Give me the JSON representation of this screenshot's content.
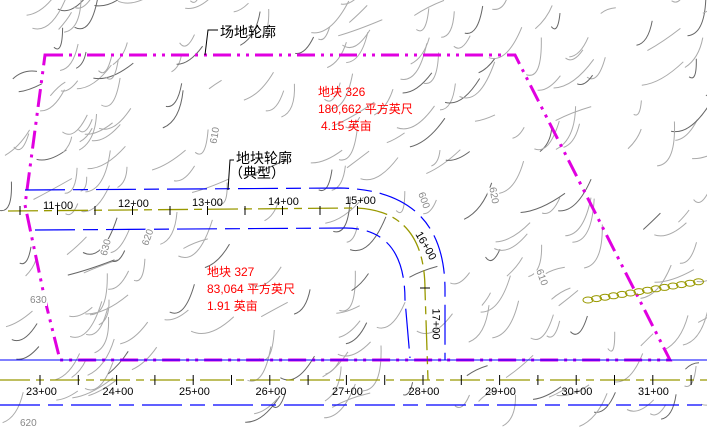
{
  "labels": {
    "site_outline": "场地轮廓",
    "parcel_outline_1": "地块轮廓",
    "parcel_outline_2": "（典型）"
  },
  "parcels": [
    {
      "name": "地块 326",
      "area_sqft": "180,662 平方英尺",
      "area_acres": "4.15 英亩"
    },
    {
      "name": "地块 327",
      "area_sqft": "83,064 平方英尺",
      "area_acres": "1.91 英亩"
    }
  ],
  "upper_road_stations": [
    "11+00",
    "12+00",
    "13+00",
    "14+00",
    "15+00",
    "16+00",
    "17+00"
  ],
  "lower_road_stations": [
    "23+00",
    "24+00",
    "25+00",
    "26+00",
    "27+00",
    "28+00",
    "29+00",
    "30+00",
    "31+00"
  ],
  "contour_labels": [
    "610",
    "600",
    "620",
    "630",
    "620",
    "630",
    "610",
    "620"
  ],
  "colors": {
    "site_boundary": "#e000e0",
    "parcel_lines": "#0000ff",
    "alignment": "#999900",
    "contours": "#aaaaaa",
    "parcel_text": "#ff0000"
  }
}
